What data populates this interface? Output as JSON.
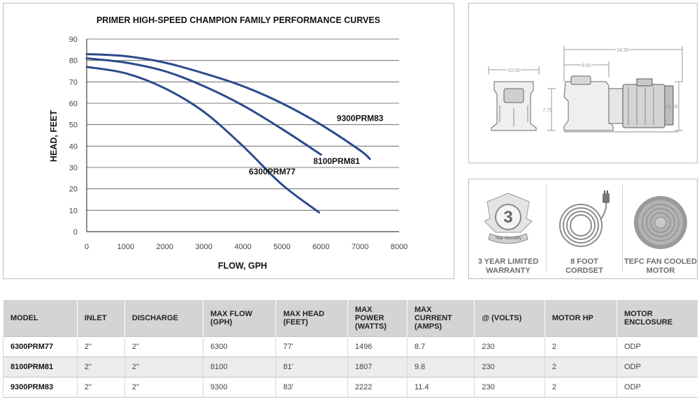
{
  "chart_data": {
    "type": "line",
    "title": "PRIMER HIGH-SPEED CHAMPION FAMILY PERFORMANCE CURVES",
    "xlabel": "FLOW, GPH",
    "ylabel": "HEAD, FEET",
    "xlim": [
      0,
      8000
    ],
    "ylim": [
      0,
      90
    ],
    "xticks": [
      0,
      1000,
      2000,
      3000,
      4000,
      5000,
      6000,
      7000,
      8000
    ],
    "yticks": [
      0,
      10,
      20,
      30,
      40,
      50,
      60,
      70,
      80,
      90
    ],
    "grid": true,
    "line_color": "#2b4a8c",
    "series": [
      {
        "name": "6300PRM77",
        "x": [
          0,
          1000,
          2000,
          3000,
          4000,
          5000,
          5950
        ],
        "y": [
          77,
          74,
          67,
          56,
          40,
          22,
          9
        ]
      },
      {
        "name": "8100PRM81",
        "x": [
          0,
          1000,
          2000,
          3000,
          4000,
          5000,
          6000
        ],
        "y": [
          81,
          79,
          75,
          68,
          59,
          48,
          36
        ]
      },
      {
        "name": "9300PRM83",
        "x": [
          0,
          1000,
          2000,
          3000,
          4000,
          5000,
          6000,
          7000,
          7250
        ],
        "y": [
          83,
          82,
          79,
          74,
          68,
          60,
          50,
          38,
          34
        ]
      }
    ]
  },
  "drawing": {
    "dims": {
      "front_width": "10.00",
      "side_length": "24.50",
      "port_offset": "9.50",
      "port_height": "7.75",
      "total_height": "11.00"
    }
  },
  "features": [
    {
      "label_line1": "3 YEAR LIMITED",
      "label_line2": "WARRANTY",
      "icon": "warranty-badge-icon",
      "badge_number": "3",
      "badge_text": "Year Warranty"
    },
    {
      "label_line1": "8 FOOT",
      "label_line2": "CORDSET",
      "icon": "power-cord-icon"
    },
    {
      "label_line1": "TEFC FAN COOLED",
      "label_line2": "MOTOR",
      "icon": "fan-cover-icon"
    }
  ],
  "table": {
    "headers": [
      [
        "MODEL"
      ],
      [
        "INLET"
      ],
      [
        "DISCHARGE"
      ],
      [
        "MAX FLOW",
        "(GPH)"
      ],
      [
        "MAX HEAD",
        "(FEET)"
      ],
      [
        "MAX",
        "POWER",
        "(WATTS)"
      ],
      [
        "MAX",
        "CURRENT",
        "(AMPS)"
      ],
      [
        "@ (VOLTS)"
      ],
      [
        "MOTOR HP"
      ],
      [
        "MOTOR",
        "ENCLOSURE"
      ]
    ],
    "rows": [
      [
        "6300PRM77",
        "2\"",
        "2\"",
        "6300",
        "77'",
        "1496",
        "8.7",
        "230",
        "2",
        "ODP"
      ],
      [
        "8100PRM81",
        "2\"",
        "2\"",
        "8100",
        "81'",
        "1807",
        "9.8",
        "230",
        "2",
        "ODP"
      ],
      [
        "9300PRM83",
        "2\"",
        "2\"",
        "9300",
        "83'",
        "2222",
        "11.4",
        "230",
        "2",
        "ODP"
      ]
    ]
  }
}
